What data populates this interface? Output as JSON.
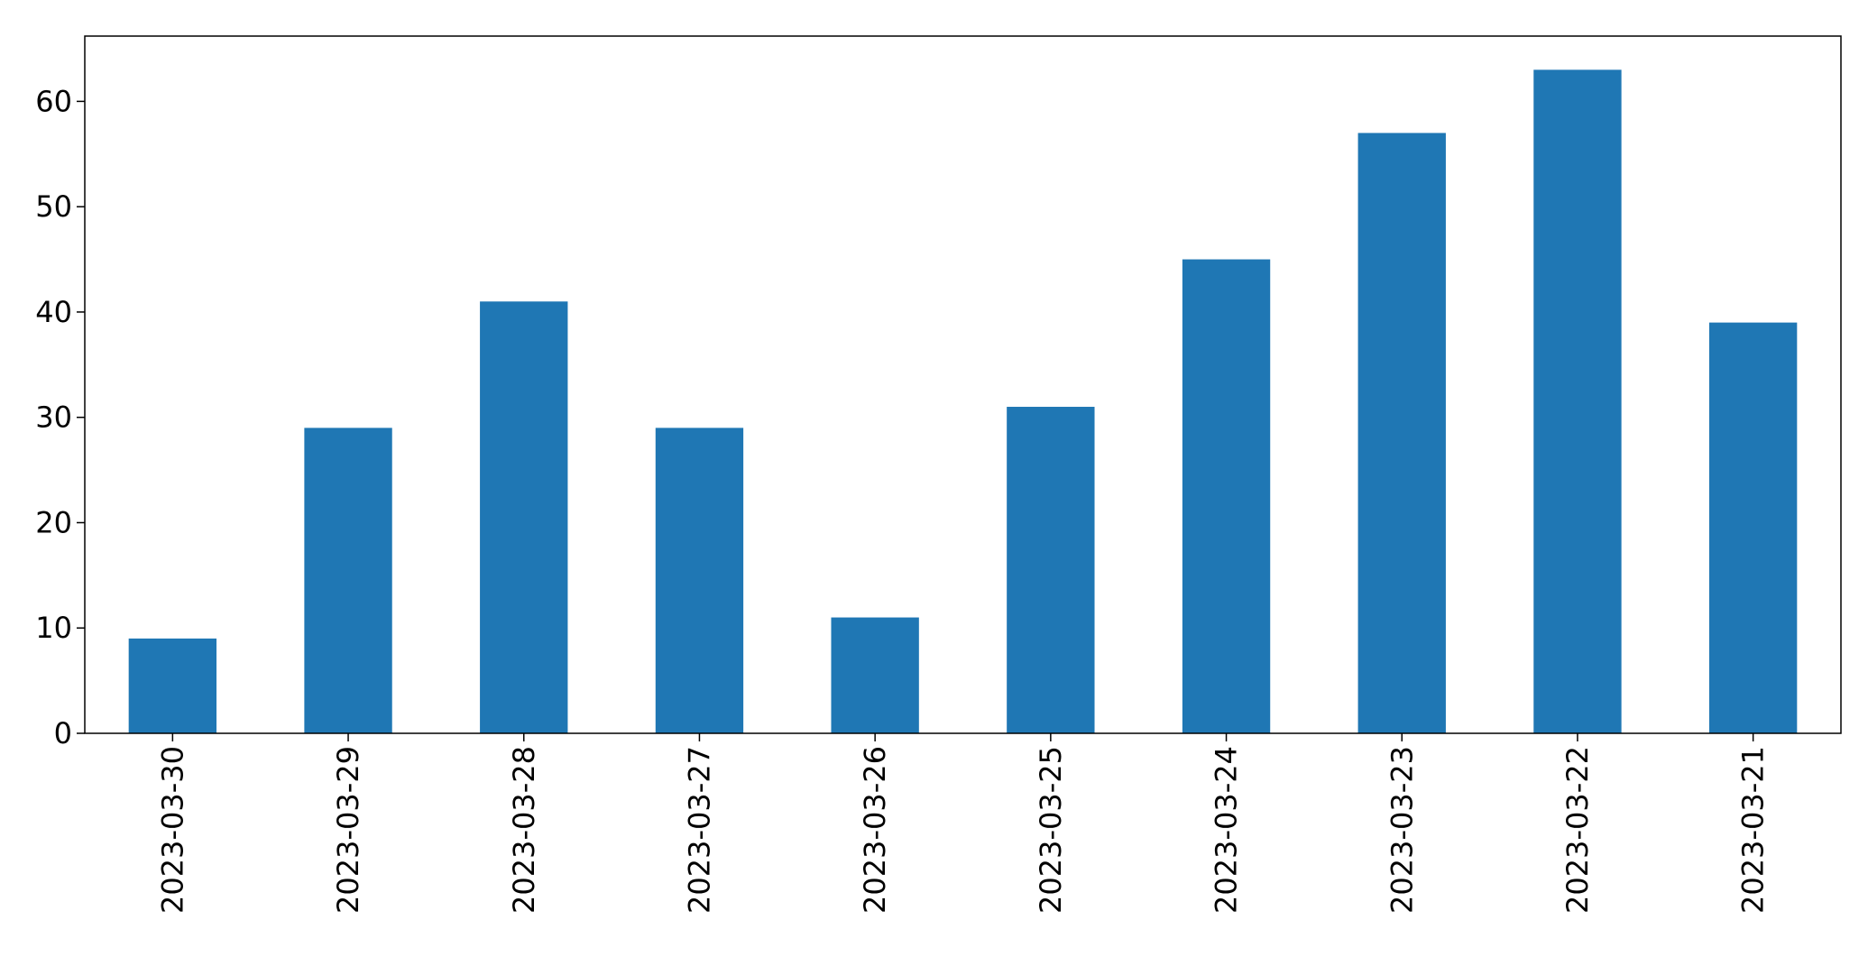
{
  "chart_data": {
    "type": "bar",
    "title": "",
    "xlabel": "",
    "ylabel": "",
    "categories": [
      "2023-03-30",
      "2023-03-29",
      "2023-03-28",
      "2023-03-27",
      "2023-03-26",
      "2023-03-25",
      "2023-03-24",
      "2023-03-23",
      "2023-03-22",
      "2023-03-21"
    ],
    "values": [
      9,
      29,
      41,
      29,
      11,
      31,
      45,
      57,
      63,
      39
    ],
    "ylim": [
      0,
      66.2
    ],
    "yticks": [
      0,
      10,
      20,
      30,
      40,
      50,
      60
    ],
    "ytick_labels": [
      "0",
      "10",
      "20",
      "30",
      "40",
      "50",
      "60"
    ],
    "bar_color": "#1f77b4",
    "grid": false,
    "legend": "none"
  }
}
